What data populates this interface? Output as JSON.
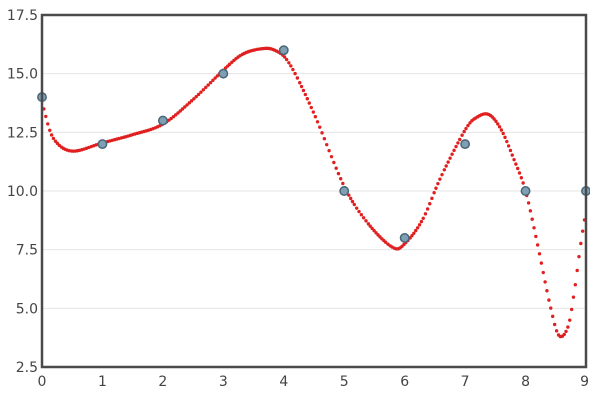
{
  "chart_data": {
    "type": "scatter",
    "title": "",
    "xlabel": "",
    "ylabel": "",
    "xlim": [
      0,
      9
    ],
    "ylim": [
      2.5,
      17.5
    ],
    "grid": true,
    "x_ticks": [
      "0",
      "1",
      "2",
      "3",
      "4",
      "5",
      "6",
      "7",
      "8",
      "9"
    ],
    "y_ticks": [
      "2.5",
      "5.0",
      "7.5",
      "10.0",
      "12.5",
      "15.0",
      "17.5"
    ],
    "series": [
      {
        "kind": "scatter",
        "color": "#7f9fb3",
        "edge_color": "#4a6678",
        "x": [
          0,
          1,
          2,
          3,
          4,
          5,
          6,
          7,
          8,
          9
        ],
        "y": [
          14,
          12,
          13,
          15,
          16,
          10,
          8,
          12,
          10,
          10
        ]
      },
      {
        "kind": "dotted-curve",
        "color": "#e02020",
        "x": [
          0,
          0.05,
          0.2,
          0.5,
          1,
          1.5,
          2,
          2.5,
          3,
          3.3,
          3.6,
          3.85,
          4.1,
          4.5,
          5,
          5.4,
          5.8,
          6,
          6.3,
          6.6,
          7,
          7.2,
          7.4,
          7.6,
          7.8,
          8,
          8.2,
          8.4,
          8.55,
          8.7,
          8.8,
          8.9,
          8.97,
          9
        ],
        "y": [
          14,
          13.3,
          12.2,
          11.7,
          12.05,
          12.4,
          12.85,
          13.9,
          15.15,
          15.8,
          16.05,
          16.0,
          15.4,
          13.3,
          10.2,
          8.6,
          7.6,
          7.75,
          8.8,
          10.6,
          12.6,
          13.15,
          13.25,
          12.6,
          11.4,
          10.0,
          7.7,
          5.2,
          3.85,
          4.2,
          5.6,
          7.5,
          8.7,
          9.0
        ]
      }
    ]
  }
}
